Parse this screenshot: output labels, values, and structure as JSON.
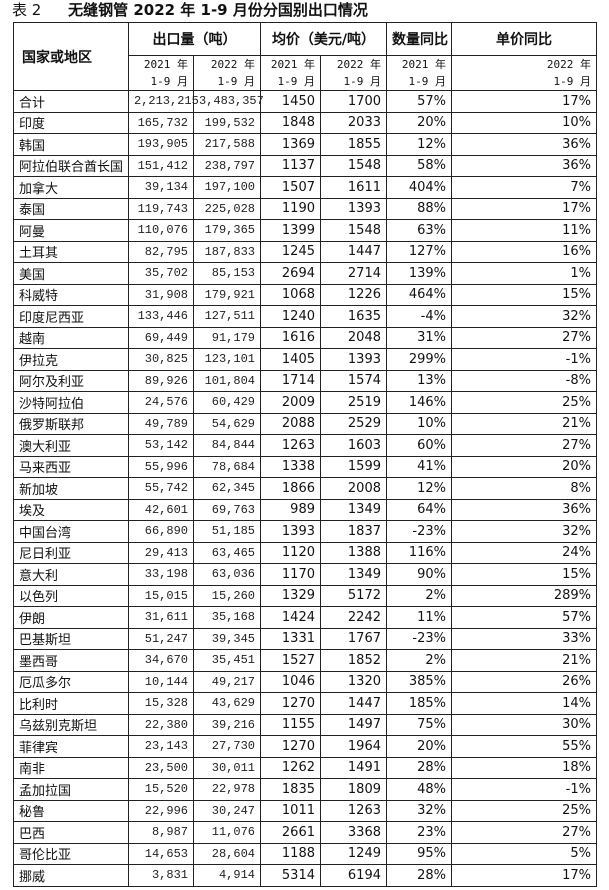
{
  "title": {
    "label": "表 2",
    "text": "无缝钢管 2022 年 1-9 月份分国别出口情况"
  },
  "header": {
    "country": "国家或地区",
    "groups": [
      "出口量（吨）",
      "均价（美元/吨）",
      "数量同比",
      "单价同比"
    ],
    "sub": [
      [
        "2021 年",
        "1-9 月"
      ],
      [
        "2022 年",
        "1-9 月"
      ],
      [
        "2021 年",
        "1-9 月"
      ],
      [
        "2022 年",
        "1-9 月"
      ],
      [
        "2021 年",
        "1-9 月"
      ],
      [
        "2022 年",
        "1-9 月"
      ]
    ]
  },
  "rows": [
    [
      "合计",
      "2,213,215",
      "3,483,357",
      "1450",
      "1700",
      "57%",
      "17%"
    ],
    [
      "印度",
      "165,732",
      "199,532",
      "1848",
      "2033",
      "20%",
      "10%"
    ],
    [
      "韩国",
      "193,905",
      "217,588",
      "1369",
      "1855",
      "12%",
      "36%"
    ],
    [
      "阿拉伯联合酋长国",
      "151,412",
      "238,797",
      "1137",
      "1548",
      "58%",
      "36%"
    ],
    [
      "加拿大",
      "39,134",
      "197,100",
      "1507",
      "1611",
      "404%",
      "7%"
    ],
    [
      "泰国",
      "119,743",
      "225,028",
      "1190",
      "1393",
      "88%",
      "17%"
    ],
    [
      "阿曼",
      "110,076",
      "179,365",
      "1399",
      "1548",
      "63%",
      "11%"
    ],
    [
      "土耳其",
      "82,795",
      "187,833",
      "1245",
      "1447",
      "127%",
      "16%"
    ],
    [
      "美国",
      "35,702",
      "85,153",
      "2694",
      "2714",
      "139%",
      "1%"
    ],
    [
      "科威特",
      "31,908",
      "179,921",
      "1068",
      "1226",
      "464%",
      "15%"
    ],
    [
      "印度尼西亚",
      "133,446",
      "127,511",
      "1240",
      "1635",
      "-4%",
      "32%"
    ],
    [
      "越南",
      "69,449",
      "91,179",
      "1616",
      "2048",
      "31%",
      "27%"
    ],
    [
      "伊拉克",
      "30,825",
      "123,101",
      "1405",
      "1393",
      "299%",
      "-1%"
    ],
    [
      "阿尔及利亚",
      "89,926",
      "101,804",
      "1714",
      "1574",
      "13%",
      "-8%"
    ],
    [
      "沙特阿拉伯",
      "24,576",
      "60,429",
      "2009",
      "2519",
      "146%",
      "25%"
    ],
    [
      "俄罗斯联邦",
      "49,789",
      "54,629",
      "2088",
      "2529",
      "10%",
      "21%"
    ],
    [
      "澳大利亚",
      "53,142",
      "84,844",
      "1263",
      "1603",
      "60%",
      "27%"
    ],
    [
      "马来西亚",
      "55,996",
      "78,684",
      "1338",
      "1599",
      "41%",
      "20%"
    ],
    [
      "新加坡",
      "55,742",
      "62,345",
      "1866",
      "2008",
      "12%",
      "8%"
    ],
    [
      "埃及",
      "42,601",
      "69,763",
      "989",
      "1349",
      "64%",
      "36%"
    ],
    [
      "中国台湾",
      "66,890",
      "51,185",
      "1393",
      "1837",
      "-23%",
      "32%"
    ],
    [
      "尼日利亚",
      "29,413",
      "63,465",
      "1120",
      "1388",
      "116%",
      "24%"
    ],
    [
      "意大利",
      "33,198",
      "63,036",
      "1170",
      "1349",
      "90%",
      "15%"
    ],
    [
      "以色列",
      "15,015",
      "15,260",
      "1329",
      "5172",
      "2%",
      "289%"
    ],
    [
      "伊朗",
      "31,611",
      "35,168",
      "1424",
      "2242",
      "11%",
      "57%"
    ],
    [
      "巴基斯坦",
      "51,247",
      "39,345",
      "1331",
      "1767",
      "-23%",
      "33%"
    ],
    [
      "墨西哥",
      "34,670",
      "35,451",
      "1527",
      "1852",
      "2%",
      "21%"
    ],
    [
      "厄瓜多尔",
      "10,144",
      "49,217",
      "1046",
      "1320",
      "385%",
      "26%"
    ],
    [
      "比利时",
      "15,328",
      "43,629",
      "1270",
      "1447",
      "185%",
      "14%"
    ],
    [
      "乌兹别克斯坦",
      "22,380",
      "39,216",
      "1155",
      "1497",
      "75%",
      "30%"
    ],
    [
      "菲律宾",
      "23,143",
      "27,730",
      "1270",
      "1964",
      "20%",
      "55%"
    ],
    [
      "南非",
      "23,500",
      "30,011",
      "1262",
      "1491",
      "28%",
      "18%"
    ],
    [
      "孟加拉国",
      "15,520",
      "22,978",
      "1835",
      "1809",
      "48%",
      "-1%"
    ],
    [
      "秘鲁",
      "22,996",
      "30,247",
      "1011",
      "1263",
      "32%",
      "25%"
    ],
    [
      "巴西",
      "8,987",
      "11,076",
      "2661",
      "3368",
      "23%",
      "27%"
    ],
    [
      "哥伦比亚",
      "14,653",
      "28,604",
      "1188",
      "1249",
      "95%",
      "5%"
    ],
    [
      "挪威",
      "3,831",
      "4,914",
      "5314",
      "6194",
      "28%",
      "17%"
    ]
  ]
}
